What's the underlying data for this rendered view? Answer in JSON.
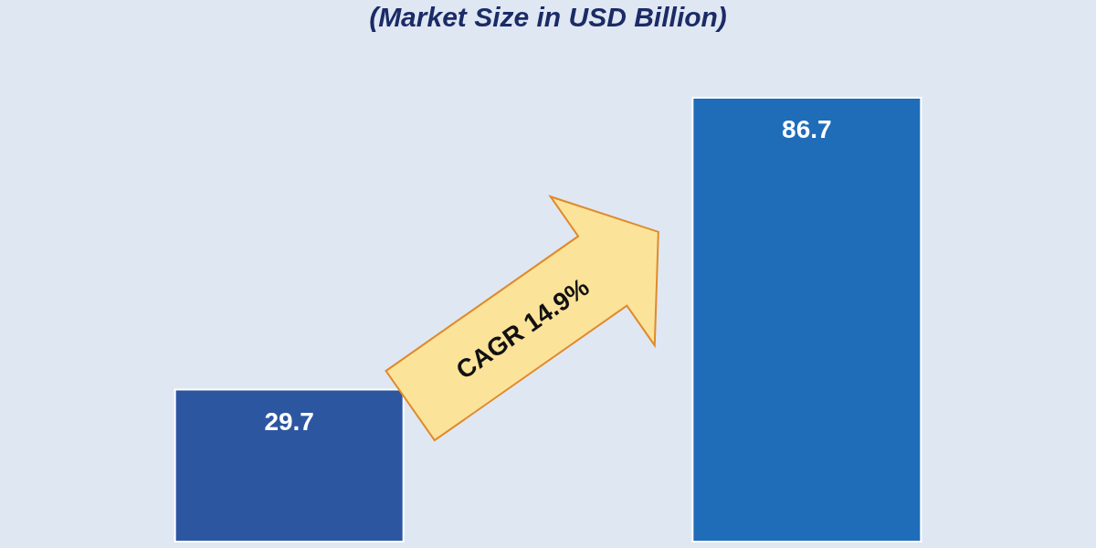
{
  "chart_data": {
    "type": "bar",
    "title": "(Market Size in USD Billion)",
    "categories": [
      null,
      null
    ],
    "values": [
      29.7,
      86.7
    ],
    "colors": [
      "#2c56a0",
      "#1f6cb8"
    ],
    "data_labels": true,
    "annotations": [
      "CAGR 14.9%"
    ],
    "grid": false,
    "legend": false
  }
}
